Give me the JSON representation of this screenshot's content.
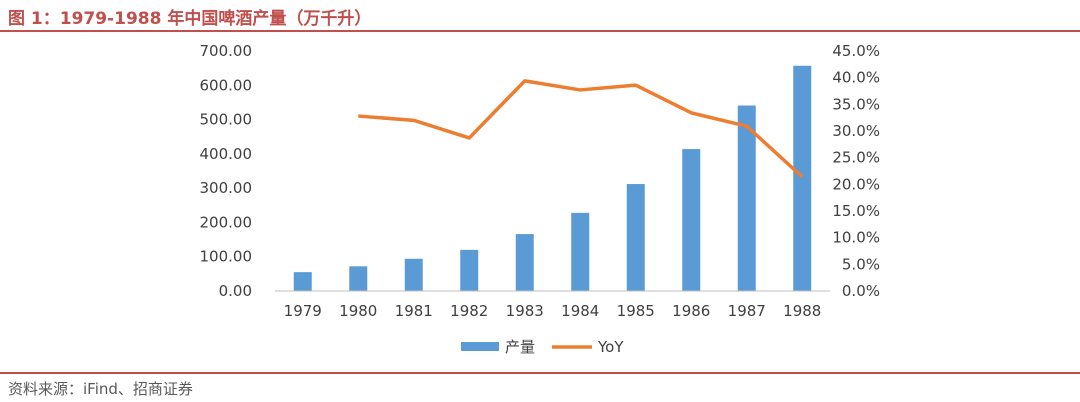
{
  "figure": {
    "title": "图 1：1979-1988 年中国啤酒产量（万千升）",
    "source": "资料来源：iFind、招商证券"
  },
  "colors": {
    "accent": "#c0504d",
    "bar": "#5b9bd5",
    "line": "#ed7d31",
    "text": "#404040"
  },
  "chart_data": {
    "type": "bar+line",
    "categories": [
      "1979",
      "1980",
      "1981",
      "1982",
      "1983",
      "1984",
      "1985",
      "1986",
      "1987",
      "1988"
    ],
    "series": [
      {
        "name": "产量",
        "type": "bar",
        "axis": "left",
        "values": [
          55,
          72,
          94,
          120,
          166,
          228,
          312,
          414,
          541,
          657
        ]
      },
      {
        "name": "YoY",
        "type": "line",
        "axis": "right",
        "values": [
          null,
          32.8,
          32.0,
          28.7,
          39.4,
          37.7,
          38.6,
          33.4,
          30.9,
          21.4
        ]
      }
    ],
    "y_left": {
      "ylim": [
        0,
        700
      ],
      "ticks": [
        "0.00",
        "100.00",
        "200.00",
        "300.00",
        "400.00",
        "500.00",
        "600.00",
        "700.00"
      ]
    },
    "y_right": {
      "ylim": [
        0,
        45
      ],
      "ticks": [
        "0.0%",
        "5.0%",
        "10.0%",
        "15.0%",
        "20.0%",
        "25.0%",
        "30.0%",
        "35.0%",
        "40.0%",
        "45.0%"
      ]
    },
    "grid": false,
    "legend": "bottom-center"
  }
}
